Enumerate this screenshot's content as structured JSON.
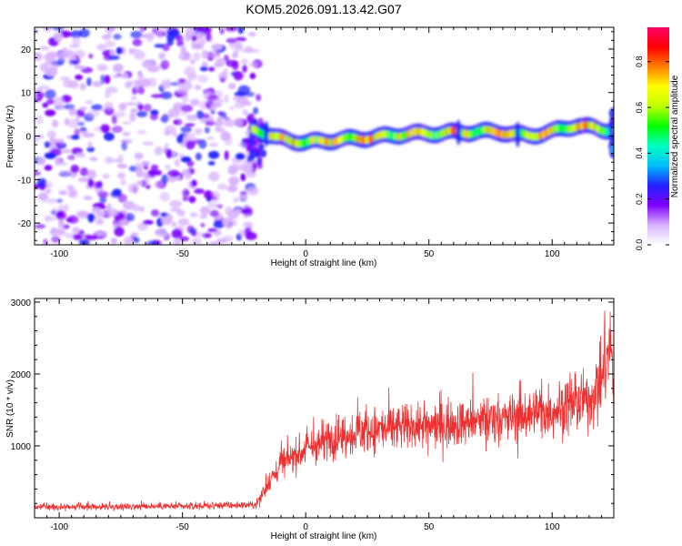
{
  "title": "KOM5.2026.091.13.42.G07",
  "chart_data": [
    {
      "type": "heatmap",
      "name": "spectrogram",
      "xlabel": "Height of straight line (km)",
      "ylabel": "Frequency (Hz)",
      "xlim": [
        -110,
        125
      ],
      "ylim": [
        -25,
        25
      ],
      "xticks": [
        -100,
        -50,
        0,
        50,
        100
      ],
      "yticks": [
        -20,
        -10,
        0,
        10,
        20
      ],
      "noise_region_end_km": -21,
      "signal_track": [
        {
          "x": -20,
          "y": 1.5
        },
        {
          "x": -12,
          "y": -0.5
        },
        {
          "x": 0,
          "y": -1.5
        },
        {
          "x": 10,
          "y": -1.0
        },
        {
          "x": 20,
          "y": -0.6
        },
        {
          "x": 30,
          "y": -0.2
        },
        {
          "x": 40,
          "y": 0.5
        },
        {
          "x": 50,
          "y": 0.6
        },
        {
          "x": 60,
          "y": 0.8
        },
        {
          "x": 70,
          "y": 1.0
        },
        {
          "x": 80,
          "y": 0.9
        },
        {
          "x": 90,
          "y": 0.0
        },
        {
          "x": 100,
          "y": 1.0
        },
        {
          "x": 110,
          "y": 2.5
        },
        {
          "x": 120,
          "y": 1.5
        }
      ],
      "colorbar": {
        "label": "Normalized spectral amplitude",
        "range": [
          0,
          0.95
        ],
        "ticks": [
          "0.0",
          "0.2",
          "0.4",
          "0.6",
          "0.8"
        ],
        "tick_values": [
          0.0,
          0.2,
          0.4,
          0.6,
          0.8
        ],
        "stops": [
          "#ffffff",
          "#d9b3ff",
          "#8000ff",
          "#2020ff",
          "#00bfff",
          "#00ffc0",
          "#00ff00",
          "#c0ff00",
          "#ffff00",
          "#ff8000",
          "#ff0000",
          "#ff0066"
        ]
      }
    },
    {
      "type": "line",
      "name": "snr",
      "xlabel": "Height of straight line (km)",
      "ylabel": "SNR (10 * v/v)",
      "xlim": [
        -110,
        125
      ],
      "ylim": [
        0,
        3050
      ],
      "xticks": [
        -100,
        -50,
        0,
        50,
        100
      ],
      "yticks": [
        1000,
        2000,
        3000
      ],
      "color": "#f03030",
      "trend": [
        {
          "x": -110,
          "y": 150
        },
        {
          "x": -50,
          "y": 160
        },
        {
          "x": -20,
          "y": 180
        },
        {
          "x": -15,
          "y": 500
        },
        {
          "x": -10,
          "y": 750
        },
        {
          "x": 0,
          "y": 950
        },
        {
          "x": 10,
          "y": 1100
        },
        {
          "x": 20,
          "y": 1200
        },
        {
          "x": 40,
          "y": 1260
        },
        {
          "x": 60,
          "y": 1300
        },
        {
          "x": 80,
          "y": 1380
        },
        {
          "x": 100,
          "y": 1500
        },
        {
          "x": 115,
          "y": 1620
        },
        {
          "x": 120,
          "y": 1900
        },
        {
          "x": 124,
          "y": 2500
        },
        {
          "x": 125,
          "y": 1500
        }
      ]
    }
  ]
}
